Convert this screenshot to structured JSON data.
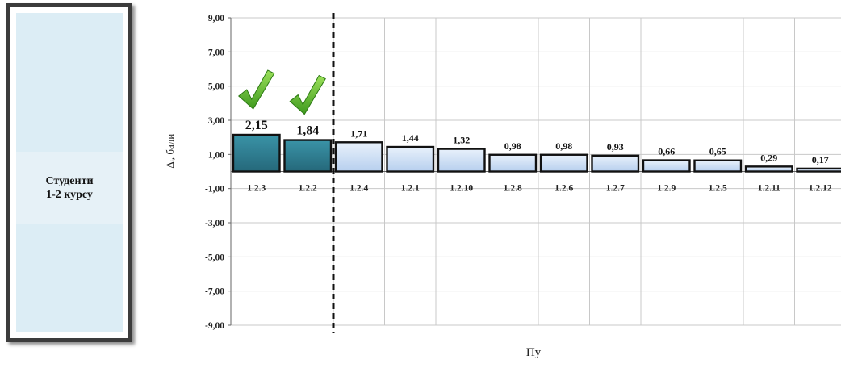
{
  "side_panel": {
    "label": "Студенти\n1-2 курсу"
  },
  "chart_data": {
    "type": "bar",
    "title": "",
    "xlabel": "Пу",
    "ylabel": "Δᵢ, бали",
    "ylim": [
      -9,
      9
    ],
    "yticks": [
      9,
      7,
      5,
      3,
      1,
      -1,
      -3,
      -5,
      -7,
      -9
    ],
    "ytick_labels": [
      "9,00",
      "7,00",
      "5,00",
      "3,00",
      "1,00",
      "-1,00",
      "-3,00",
      "-5,00",
      "-7,00",
      "-9,00"
    ],
    "categories": [
      "1.2.3",
      "1.2.2",
      "1.2.4",
      "1.2.1",
      "1.2.10",
      "1.2.8",
      "1.2.6",
      "1.2.7",
      "1.2.9",
      "1.2.5",
      "1.2.11",
      "1.2.12"
    ],
    "values": [
      2.15,
      1.84,
      1.71,
      1.44,
      1.32,
      0.98,
      0.98,
      0.93,
      0.66,
      0.65,
      0.29,
      0.17
    ],
    "value_labels": [
      "2,15",
      "1,84",
      "1,71",
      "1,44",
      "1,32",
      "0,98",
      "0,98",
      "0,93",
      "0,66",
      "0,65",
      "0,29",
      "0,17"
    ],
    "highlighted": [
      "1.2.3",
      "1.2.2"
    ],
    "divider_after_category": "1.2.2",
    "grid": true,
    "colors": {
      "highlight_bar": "#2e7f92",
      "normal_bar": "#c7dcf3",
      "check_mark": "#58bb2c",
      "grid": "#c8c8c8"
    }
  }
}
